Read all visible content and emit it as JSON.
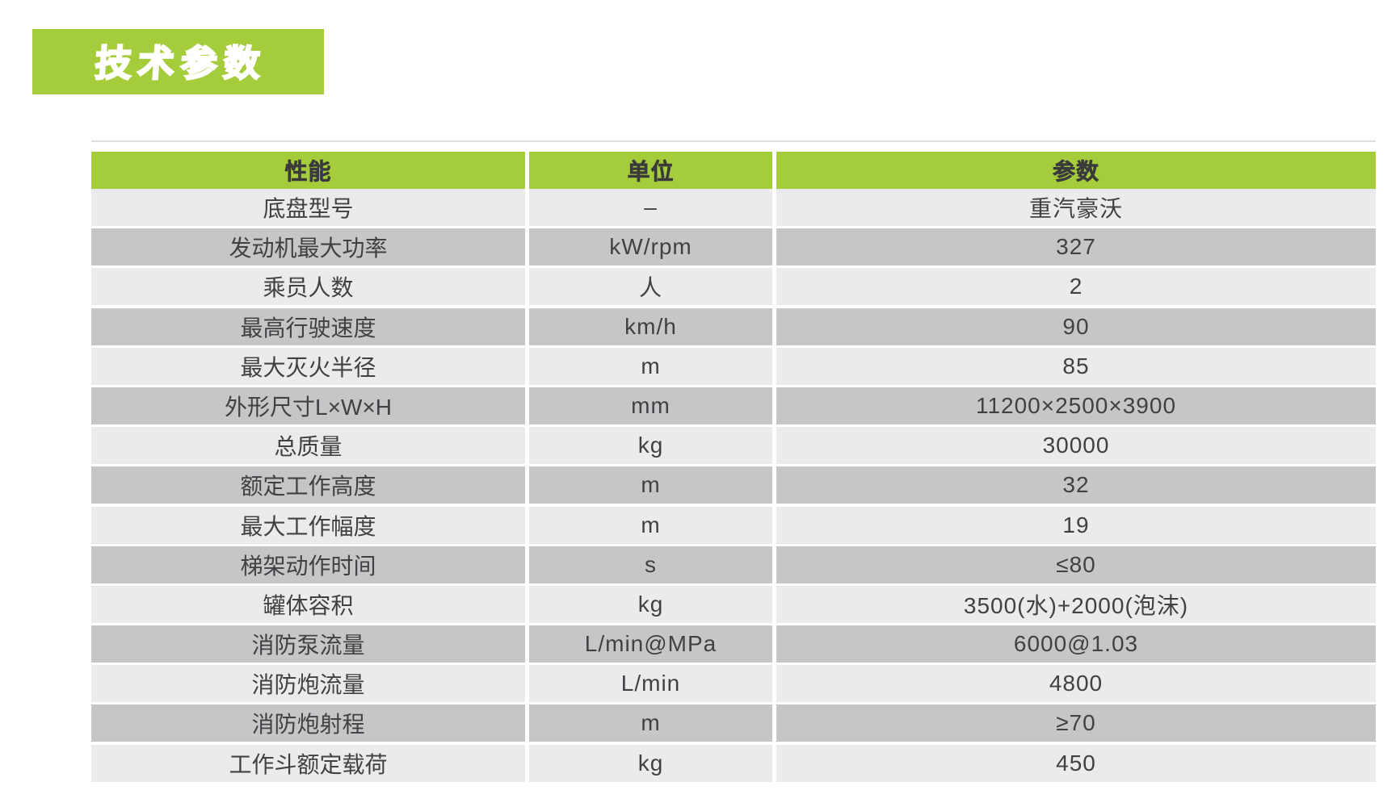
{
  "title": "技术参数",
  "colors": {
    "green": "#a5cc3b",
    "row_light": "#ebebed",
    "row_dark": "#c6c6c8",
    "text": "#414144"
  },
  "table": {
    "columns": [
      "性能",
      "单位",
      "参数"
    ],
    "rows": [
      {
        "name": "底盘型号",
        "unit": "–",
        "value": "重汽豪沃"
      },
      {
        "name": "发动机最大功率",
        "unit": "kW/rpm",
        "value": "327"
      },
      {
        "name": "乘员人数",
        "unit": "人",
        "value": "2"
      },
      {
        "name": "最高行驶速度",
        "unit": "km/h",
        "value": "90"
      },
      {
        "name": "最大灭火半径",
        "unit": "m",
        "value": "85"
      },
      {
        "name": "外形尺寸L×W×H",
        "unit": "mm",
        "value": "11200×2500×3900"
      },
      {
        "name": "总质量",
        "unit": "kg",
        "value": "30000"
      },
      {
        "name": "额定工作高度",
        "unit": "m",
        "value": "32"
      },
      {
        "name": "最大工作幅度",
        "unit": "m",
        "value": "19"
      },
      {
        "name": "梯架动作时间",
        "unit": "s",
        "value": "≤80"
      },
      {
        "name": "罐体容积",
        "unit": "kg",
        "value": "3500(水)+2000(泡沫)"
      },
      {
        "name": "消防泵流量",
        "unit": "L/min@MPa",
        "value": "6000@1.03"
      },
      {
        "name": "消防炮流量",
        "unit": "L/min",
        "value": "4800"
      },
      {
        "name": "消防炮射程",
        "unit": "m",
        "value": "≥70"
      },
      {
        "name": "工作斗额定载荷",
        "unit": "kg",
        "value": "450"
      }
    ]
  }
}
